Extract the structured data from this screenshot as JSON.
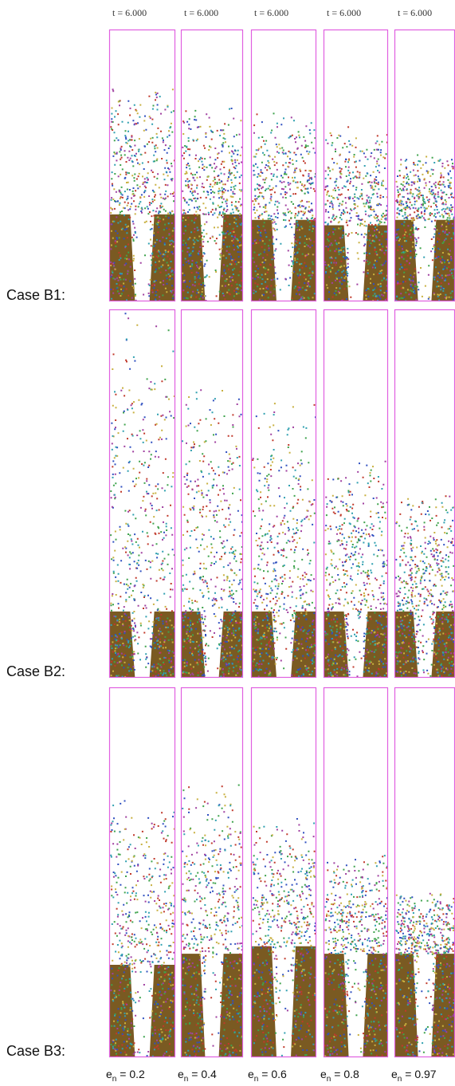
{
  "time_labels": [
    "t = 6.000",
    "t = 6.000",
    "t = 6.000",
    "t = 6.000",
    "t = 6.000"
  ],
  "row_labels": [
    "Case B1:",
    "Case B2:",
    "Case B3:"
  ],
  "column_labels": [
    {
      "symbol": "e",
      "subscript": "n",
      "rest": " = 0.2"
    },
    {
      "symbol": "e",
      "subscript": "n",
      "rest": " = 0.4"
    },
    {
      "symbol": "e",
      "subscript": "n",
      "rest": " = 0.6"
    },
    {
      "symbol": "e",
      "subscript": "n",
      "rest": " = 0.8"
    },
    {
      "symbol": "e",
      "subscript": "n",
      "rest": " = 0.97"
    }
  ]
}
